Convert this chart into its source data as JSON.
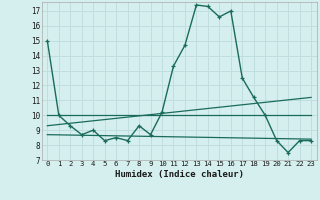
{
  "xlabel": "Humidex (Indice chaleur)",
  "bg_color": "#d4efee",
  "grid_color": "#c0dedd",
  "line_color": "#1a6b5a",
  "xlim": [
    -0.5,
    23.5
  ],
  "ylim": [
    7,
    17.6
  ],
  "yticks": [
    7,
    8,
    9,
    10,
    11,
    12,
    13,
    14,
    15,
    16,
    17
  ],
  "xticks": [
    0,
    1,
    2,
    3,
    4,
    5,
    6,
    7,
    8,
    9,
    10,
    11,
    12,
    13,
    14,
    15,
    16,
    17,
    18,
    19,
    20,
    21,
    22,
    23
  ],
  "curve1_x": [
    0,
    1,
    2,
    3,
    4,
    5,
    6,
    7,
    8,
    9,
    10,
    11,
    12,
    13,
    14,
    15,
    16,
    17,
    18,
    19,
    20,
    21,
    22,
    23
  ],
  "curve1_y": [
    15,
    10,
    9.3,
    8.7,
    9.0,
    8.3,
    8.5,
    8.3,
    9.3,
    8.7,
    10.2,
    13.3,
    14.7,
    17.4,
    17.3,
    16.6,
    17.0,
    12.5,
    11.2,
    10.0,
    8.3,
    7.5,
    8.3,
    8.3
  ],
  "curve2_x": [
    0,
    23
  ],
  "curve2_y": [
    10.0,
    10.0
  ],
  "curve3_x": [
    0,
    23
  ],
  "curve3_y": [
    8.7,
    8.4
  ],
  "curve4_x": [
    0,
    23
  ],
  "curve4_y": [
    9.3,
    11.2
  ]
}
